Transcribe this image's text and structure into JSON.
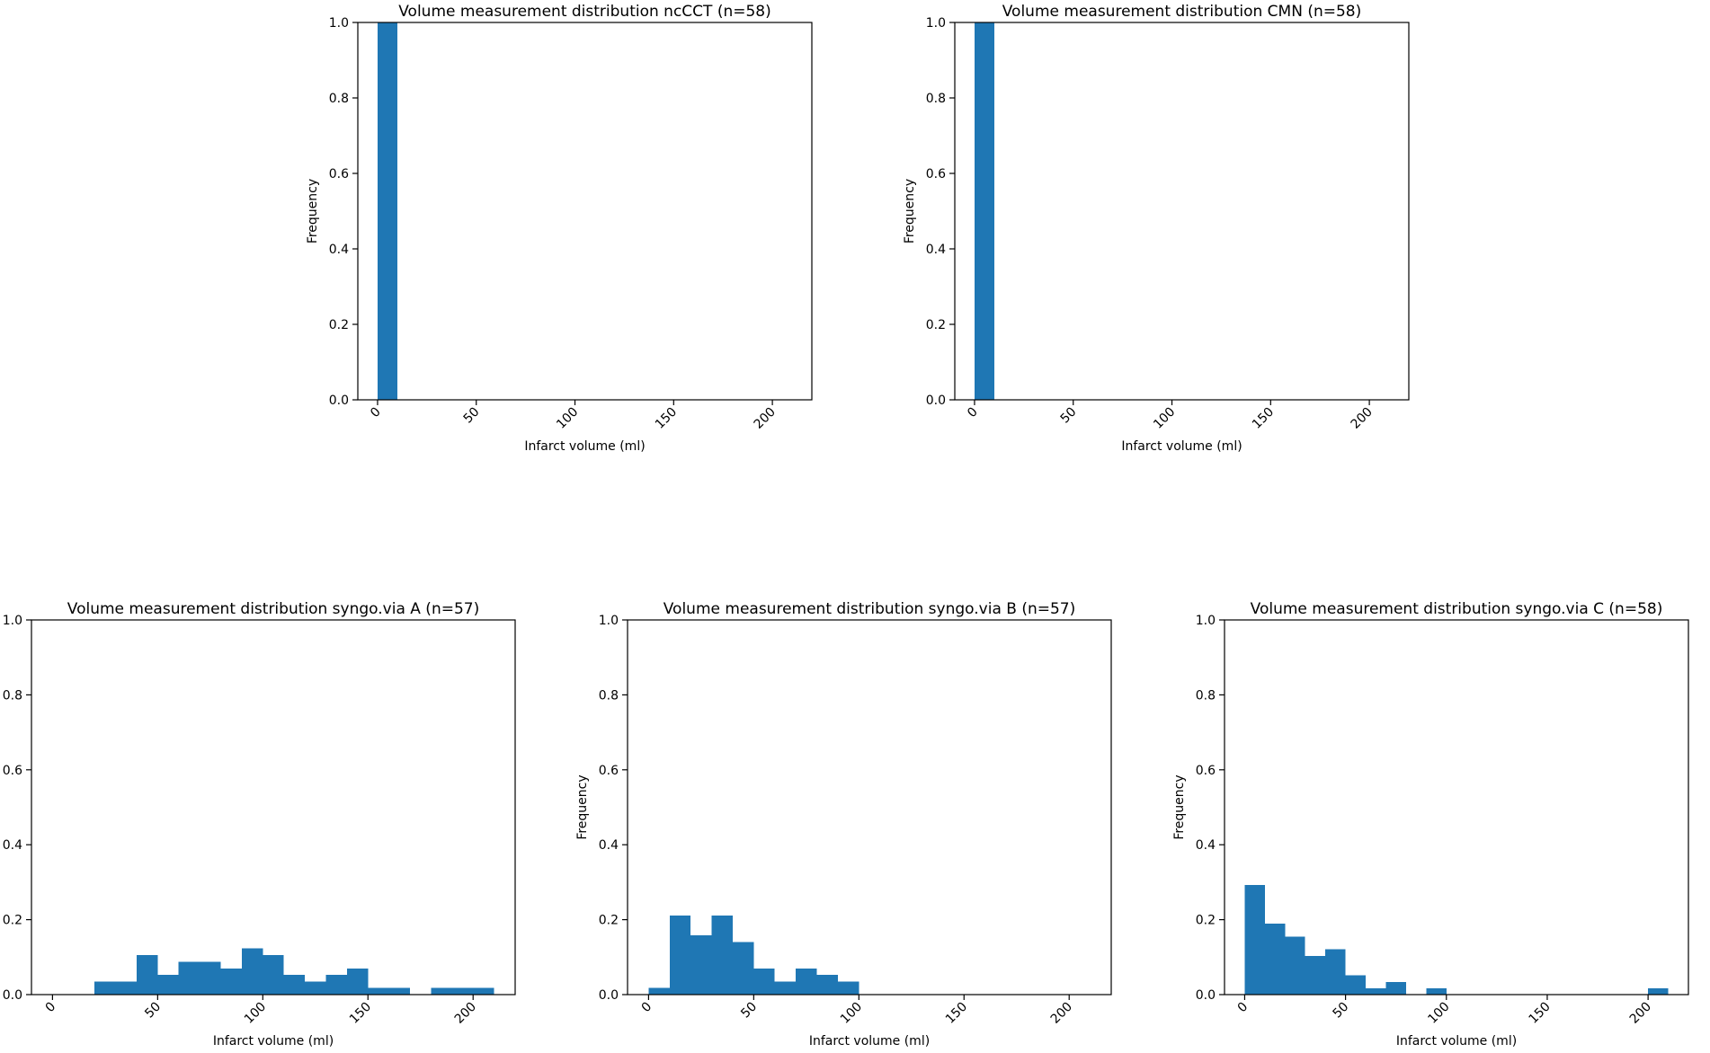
{
  "chart_data": [
    {
      "type": "bar",
      "title": "Volume measurement distribution ncCCT (n=58)",
      "xlabel": "Infarct volume (ml)",
      "ylabel": "Frequency",
      "xlim": [
        -10,
        220
      ],
      "ylim": [
        0,
        1.0
      ],
      "bar_color": "#1f77b4",
      "xticks": [
        0,
        50,
        100,
        150,
        200
      ],
      "yticks": [
        0.0,
        0.2,
        0.4,
        0.6,
        0.8,
        1.0
      ],
      "bins": [
        {
          "x0": 0,
          "x1": 10,
          "value": 1.0
        }
      ]
    },
    {
      "type": "bar",
      "title": "Volume measurement distribution CMN (n=58)",
      "xlabel": "Infarct volume (ml)",
      "ylabel": "Frequency",
      "xlim": [
        -10,
        220
      ],
      "ylim": [
        0,
        1.0
      ],
      "bar_color": "#1f77b4",
      "xticks": [
        0,
        50,
        100,
        150,
        200
      ],
      "yticks": [
        0.0,
        0.2,
        0.4,
        0.6,
        0.8,
        1.0
      ],
      "bins": [
        {
          "x0": 0,
          "x1": 10,
          "value": 1.0
        }
      ]
    },
    {
      "type": "bar",
      "title": "Volume measurement distribution syngo.via A (n=57)",
      "xlabel": "Infarct volume (ml)",
      "ylabel": "Frequency",
      "xlim": [
        -10,
        220
      ],
      "ylim": [
        0,
        1.0
      ],
      "bar_color": "#1f77b4",
      "xticks": [
        0,
        50,
        100,
        150,
        200
      ],
      "yticks": [
        0.0,
        0.2,
        0.4,
        0.6,
        0.8,
        1.0
      ],
      "bins": [
        {
          "x0": 20,
          "x1": 30,
          "value": 0.035
        },
        {
          "x0": 30,
          "x1": 40,
          "value": 0.035
        },
        {
          "x0": 40,
          "x1": 50,
          "value": 0.105
        },
        {
          "x0": 50,
          "x1": 60,
          "value": 0.053
        },
        {
          "x0": 60,
          "x1": 70,
          "value": 0.088
        },
        {
          "x0": 70,
          "x1": 80,
          "value": 0.088
        },
        {
          "x0": 80,
          "x1": 90,
          "value": 0.07
        },
        {
          "x0": 90,
          "x1": 100,
          "value": 0.123
        },
        {
          "x0": 100,
          "x1": 110,
          "value": 0.105
        },
        {
          "x0": 110,
          "x1": 120,
          "value": 0.053
        },
        {
          "x0": 120,
          "x1": 130,
          "value": 0.035
        },
        {
          "x0": 130,
          "x1": 140,
          "value": 0.053
        },
        {
          "x0": 140,
          "x1": 150,
          "value": 0.07
        },
        {
          "x0": 150,
          "x1": 160,
          "value": 0.018
        },
        {
          "x0": 160,
          "x1": 170,
          "value": 0.018
        },
        {
          "x0": 180,
          "x1": 190,
          "value": 0.018
        },
        {
          "x0": 190,
          "x1": 200,
          "value": 0.018
        },
        {
          "x0": 200,
          "x1": 210,
          "value": 0.018
        }
      ]
    },
    {
      "type": "bar",
      "title": "Volume measurement distribution syngo.via B (n=57)",
      "xlabel": "Infarct volume (ml)",
      "ylabel": "Frequency",
      "xlim": [
        -10,
        220
      ],
      "ylim": [
        0,
        1.0
      ],
      "bar_color": "#1f77b4",
      "xticks": [
        0,
        50,
        100,
        150,
        200
      ],
      "yticks": [
        0.0,
        0.2,
        0.4,
        0.6,
        0.8,
        1.0
      ],
      "bins": [
        {
          "x0": 0,
          "x1": 10,
          "value": 0.018
        },
        {
          "x0": 10,
          "x1": 20,
          "value": 0.211
        },
        {
          "x0": 20,
          "x1": 30,
          "value": 0.158
        },
        {
          "x0": 30,
          "x1": 40,
          "value": 0.211
        },
        {
          "x0": 40,
          "x1": 50,
          "value": 0.14
        },
        {
          "x0": 50,
          "x1": 60,
          "value": 0.07
        },
        {
          "x0": 60,
          "x1": 70,
          "value": 0.035
        },
        {
          "x0": 70,
          "x1": 80,
          "value": 0.07
        },
        {
          "x0": 80,
          "x1": 90,
          "value": 0.053
        },
        {
          "x0": 90,
          "x1": 100,
          "value": 0.035
        }
      ]
    },
    {
      "type": "bar",
      "title": "Volume measurement distribution syngo.via C (n=58)",
      "xlabel": "Infarct volume (ml)",
      "ylabel": "Frequency",
      "xlim": [
        -10,
        220
      ],
      "ylim": [
        0,
        1.0
      ],
      "bar_color": "#1f77b4",
      "xticks": [
        0,
        50,
        100,
        150,
        200
      ],
      "yticks": [
        0.0,
        0.2,
        0.4,
        0.6,
        0.8,
        1.0
      ],
      "bins": [
        {
          "x0": 0,
          "x1": 10,
          "value": 0.293
        },
        {
          "x0": 10,
          "x1": 20,
          "value": 0.19
        },
        {
          "x0": 20,
          "x1": 30,
          "value": 0.155
        },
        {
          "x0": 30,
          "x1": 40,
          "value": 0.103
        },
        {
          "x0": 40,
          "x1": 50,
          "value": 0.121
        },
        {
          "x0": 50,
          "x1": 60,
          "value": 0.052
        },
        {
          "x0": 60,
          "x1": 70,
          "value": 0.017
        },
        {
          "x0": 70,
          "x1": 80,
          "value": 0.034
        },
        {
          "x0": 90,
          "x1": 100,
          "value": 0.017
        },
        {
          "x0": 200,
          "x1": 210,
          "value": 0.017
        }
      ]
    }
  ]
}
